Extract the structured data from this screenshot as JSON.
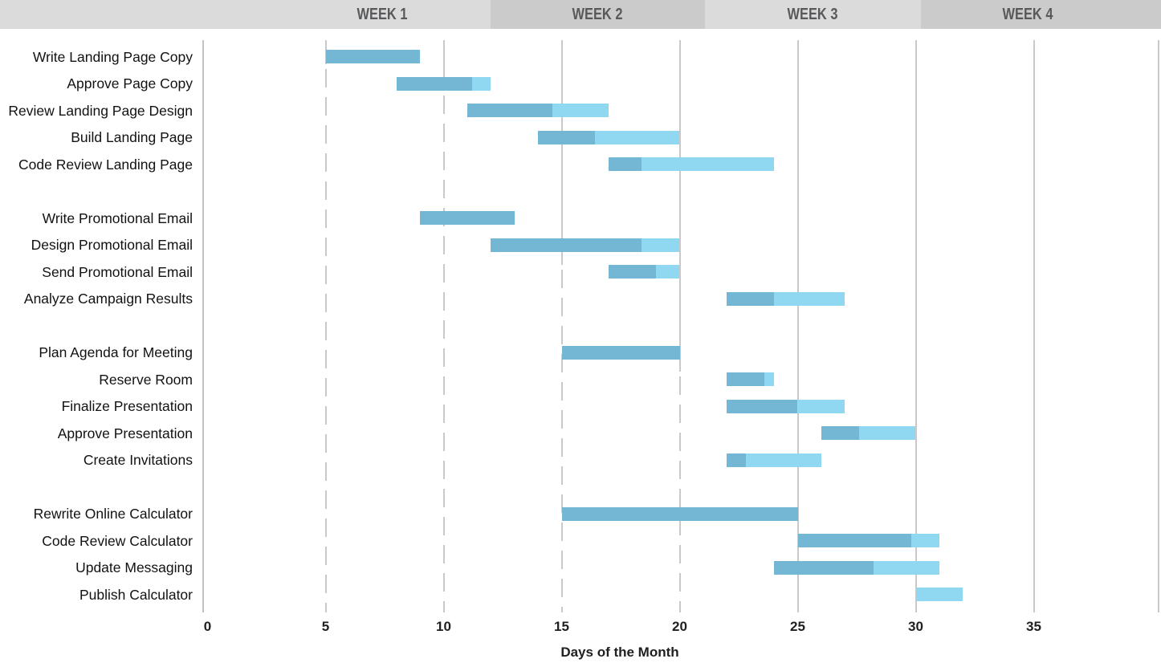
{
  "chart_data": {
    "type": "gantt",
    "xlabel": "Days of the Month",
    "x_ticks": [
      0,
      5,
      10,
      15,
      20,
      25,
      30,
      35
    ],
    "x_range": [
      0,
      40
    ],
    "grid": "vertical, dashed on days 5-20 below bars, solid on days 25-35",
    "legend_position": "none",
    "week_headers": [
      "WEEK 1",
      "WEEK 2",
      "WEEK 3",
      "WEEK 4"
    ],
    "bar_meaning": {
      "dark_segment": "completed portion",
      "light_segment": "remaining portion"
    },
    "groups": [
      {
        "name": "landing-page",
        "tasks": [
          {
            "label": "Write Landing Page Copy",
            "start_day": 5,
            "completed_through_day": 9,
            "end_day": 9
          },
          {
            "label": "Approve Page Copy",
            "start_day": 8,
            "completed_through_day": 11.2,
            "end_day": 12
          },
          {
            "label": "Review Landing Page Design",
            "start_day": 11,
            "completed_through_day": 14.6,
            "end_day": 17
          },
          {
            "label": "Build Landing Page",
            "start_day": 14,
            "completed_through_day": 16.4,
            "end_day": 20
          },
          {
            "label": "Code Review Landing Page",
            "start_day": 17,
            "completed_through_day": 18.4,
            "end_day": 24
          }
        ]
      },
      {
        "name": "promotional-email",
        "tasks": [
          {
            "label": "Write Promotional Email",
            "start_day": 9,
            "completed_through_day": 13,
            "end_day": 13
          },
          {
            "label": "Design Promotional Email",
            "start_day": 12,
            "completed_through_day": 18.4,
            "end_day": 20
          },
          {
            "label": "Send Promotional Email",
            "start_day": 17,
            "completed_through_day": 19,
            "end_day": 20
          },
          {
            "label": "Analyze Campaign Results",
            "start_day": 22,
            "completed_through_day": 24,
            "end_day": 27
          }
        ]
      },
      {
        "name": "meeting",
        "tasks": [
          {
            "label": "Plan Agenda for Meeting",
            "start_day": 15,
            "completed_through_day": 20,
            "end_day": 20
          },
          {
            "label": "Reserve Room",
            "start_day": 22,
            "completed_through_day": 23.6,
            "end_day": 24
          },
          {
            "label": "Finalize Presentation",
            "start_day": 22,
            "completed_through_day": 25,
            "end_day": 27
          },
          {
            "label": "Approve Presentation",
            "start_day": 26,
            "completed_through_day": 27.6,
            "end_day": 30
          },
          {
            "label": "Create Invitations",
            "start_day": 22,
            "completed_through_day": 22.8,
            "end_day": 26
          }
        ]
      },
      {
        "name": "calculator",
        "tasks": [
          {
            "label": "Rewrite Online Calculator",
            "start_day": 15,
            "completed_through_day": 25,
            "end_day": 25
          },
          {
            "label": "Code Review Calculator",
            "start_day": 25,
            "completed_through_day": 29.8,
            "end_day": 31
          },
          {
            "label": "Update Messaging",
            "start_day": 24,
            "completed_through_day": 28.2,
            "end_day": 31
          },
          {
            "label": "Publish Calculator",
            "start_day": 30,
            "completed_through_day": 30,
            "end_day": 32
          }
        ]
      }
    ]
  },
  "colors": {
    "bar_complete": "#73B7D5",
    "bar_remaining": "#90D7F2",
    "header_band_light": "#DBDBDB",
    "header_band_dark": "#CBCBCB",
    "header_text": "#58595B",
    "gridline": "#C9C9C9",
    "axis_text": "#1F1F1F",
    "task_text": "#121212"
  }
}
